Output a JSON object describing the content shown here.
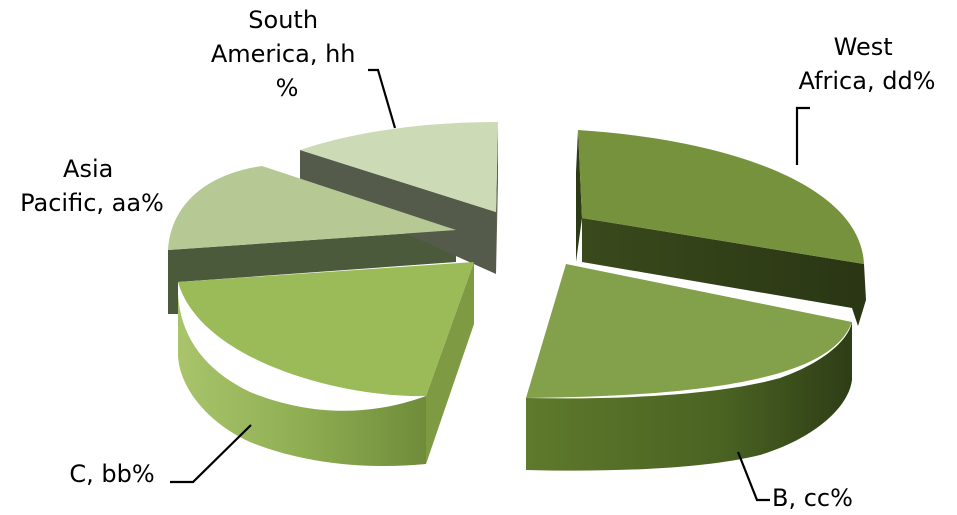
{
  "chart_data": {
    "type": "pie",
    "title": "",
    "style": "3d-exploded",
    "slices": [
      {
        "label": [
          "West",
          "Africa, dd%"
        ],
        "color": "#76923c"
      },
      {
        "label": [
          "B, cc%"
        ],
        "color": "#83a04a"
      },
      {
        "label": [
          "C, bb%"
        ],
        "color": "#9bbb59"
      },
      {
        "label": [
          "Asia",
          "Pacific, aa%"
        ],
        "color": "#b6c994"
      },
      {
        "label": [
          "South",
          "America, hh",
          "%"
        ],
        "color": "#ccdbb6"
      }
    ]
  }
}
